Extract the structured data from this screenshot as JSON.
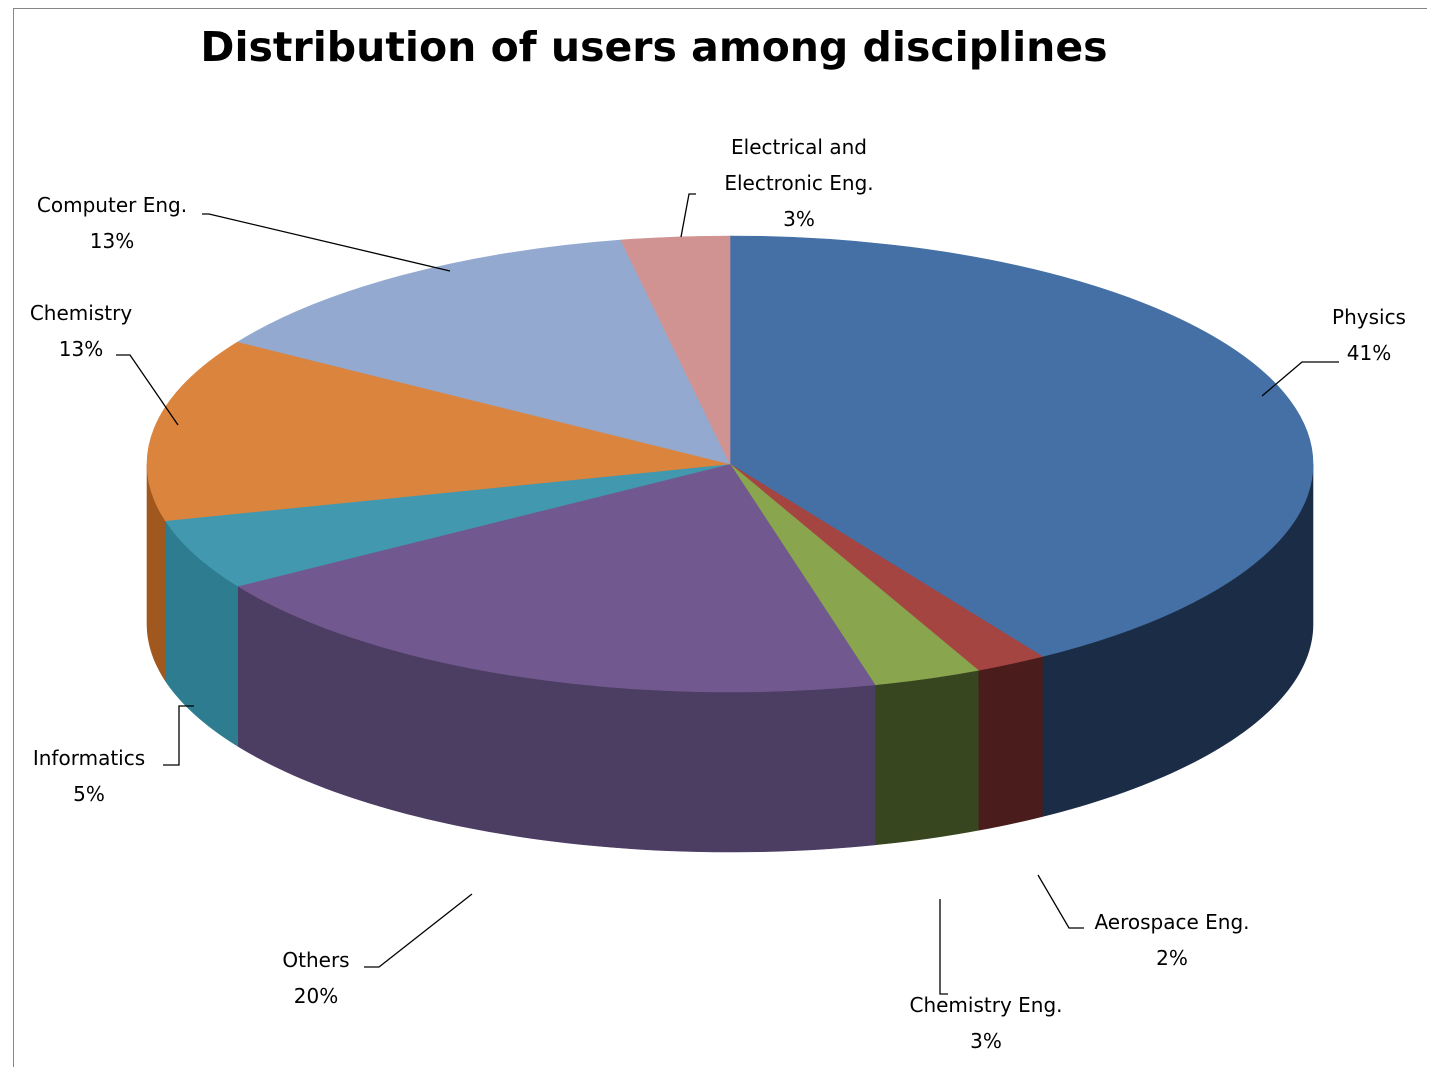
{
  "chart_data": {
    "type": "pie",
    "style": "3d",
    "title": "Distribution of users among disciplines",
    "slices": [
      {
        "label": "Physics",
        "value": 41,
        "value_label": "41%",
        "color": "#4470A5",
        "side_color": "#1B2C46"
      },
      {
        "label": "Aerospace Eng.",
        "value": 2,
        "value_label": "2%",
        "color": "#A44542",
        "side_color": "#4A1C1B"
      },
      {
        "label": "Chemistry Eng.",
        "value": 3,
        "value_label": "3%",
        "color": "#89A54E",
        "side_color": "#384620"
      },
      {
        "label": "Others",
        "value": 20,
        "value_label": "20%",
        "color": "#71588F",
        "side_color": "#4C3D63"
      },
      {
        "label": "Informatics",
        "value": 5,
        "value_label": "5%",
        "color": "#4198AF",
        "side_color": "#2E7C90"
      },
      {
        "label": "Chemistry",
        "value": 13,
        "value_label": "13%",
        "color": "#DB843D",
        "side_color": "#A0581F"
      },
      {
        "label": "Computer Eng.",
        "value": 13,
        "value_label": "13%",
        "color": "#93A9CF",
        "side_color": "#5E79A7"
      },
      {
        "label": "Electrical and Electronic Eng.",
        "value": 3,
        "value_label": "3%",
        "color": "#D09392",
        "side_color": "#9C5B5A"
      }
    ]
  }
}
